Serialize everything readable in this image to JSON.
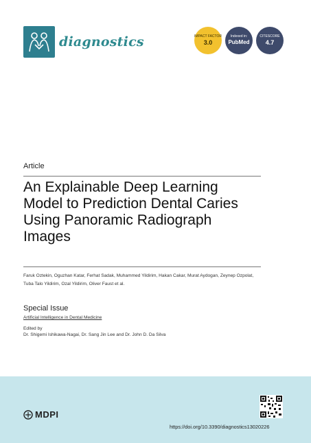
{
  "header": {
    "journal_name": "diagnostics",
    "badges": {
      "impact_label": "IMPACT FACTOR",
      "impact_value": "3.0",
      "pubmed_label": "Indexed in:",
      "pubmed_value": "PubMed",
      "citescore_label": "CITESCORE",
      "citescore_value": "4.7"
    }
  },
  "article": {
    "type": "Article",
    "title": "An Explainable Deep Learning Model to Prediction Dental Caries Using Panoramic Radiograph Images",
    "authors": "Faruk Oztekin, Oguzhan Katar, Ferhat Sadak, Muhammed Yildirim, Hakan Cakar, Murat Aydogan, Zeynep Ozpolat, Tuba Talo Yildirim, Ozal Yildirim, Oliver Faust et al."
  },
  "special_issue": {
    "heading": "Special Issue",
    "name": "Artificial Intelligence in Dental Medicine",
    "edited_by_label": "Edited by",
    "editors": "Dr. Shigemi Ishikawa-Nagai, Dr. Sang Jin Lee and Dr. John D. Da Silva"
  },
  "footer": {
    "publisher": "MDPI",
    "doi": "https://doi.org/10.3390/diagnostics13020226"
  },
  "colors": {
    "journal_teal": "#2e8a8f",
    "impact_badge": "#f2c12e",
    "index_badge": "#3e4a6b",
    "footer_bg": "#c7e6ec"
  }
}
